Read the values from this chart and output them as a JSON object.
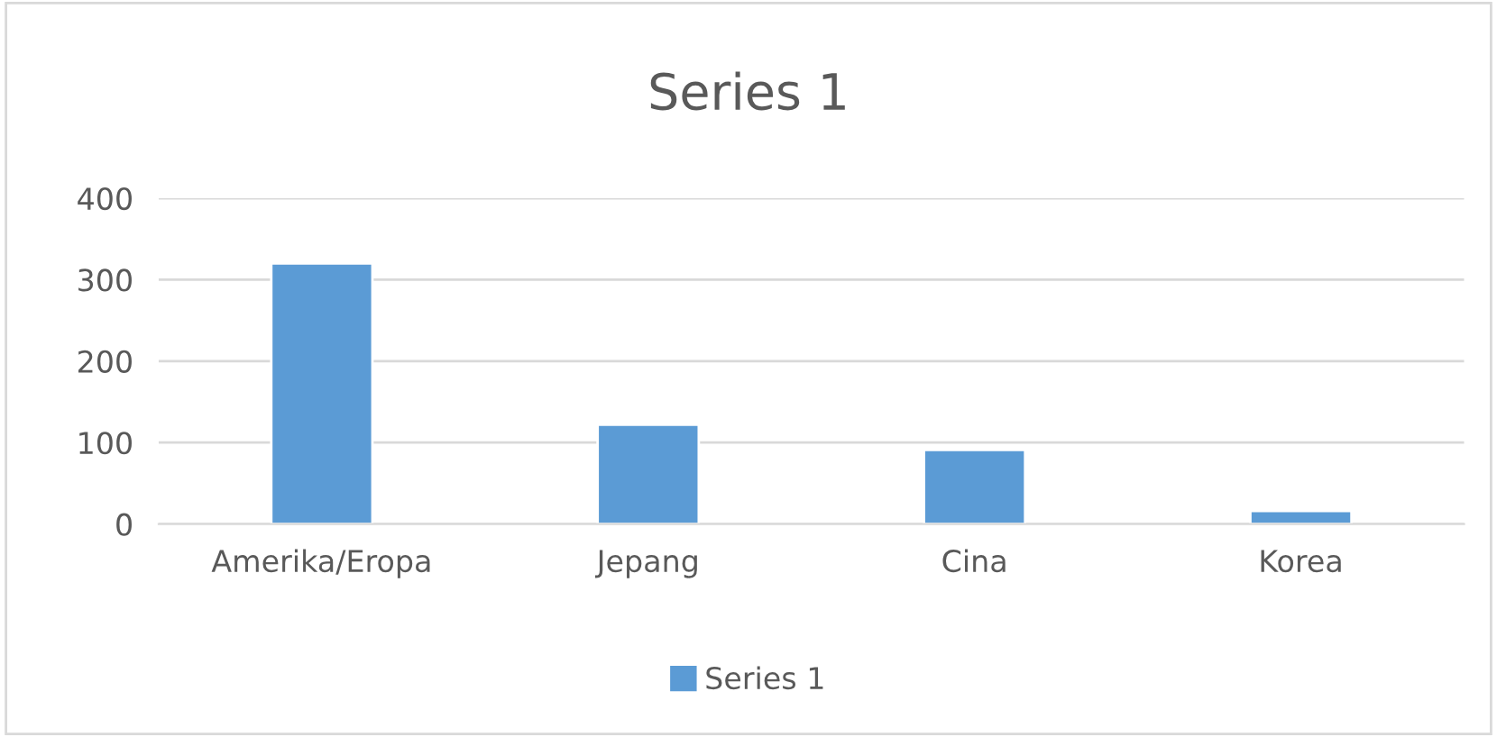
{
  "chart_data": {
    "type": "bar",
    "title": "Series 1",
    "categories": [
      "Amerika/Eropa",
      "Jepang",
      "Cina",
      "Korea"
    ],
    "series": [
      {
        "name": "Series 1",
        "color": "#5b9bd5",
        "values": [
          320,
          122,
          91,
          16
        ]
      }
    ],
    "ylim": [
      0,
      400
    ],
    "yticks": [
      0,
      100,
      200,
      300,
      400
    ],
    "grid": "y",
    "legend": "bottom"
  }
}
